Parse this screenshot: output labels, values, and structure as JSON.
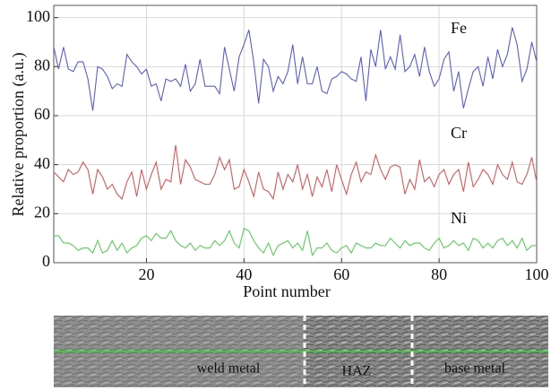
{
  "chart_data": {
    "type": "line",
    "ylabel": "Relative proportion (a.u.)",
    "xlabel": "Point number",
    "x": [
      1,
      2,
      3,
      4,
      5,
      6,
      7,
      8,
      9,
      10,
      11,
      12,
      13,
      14,
      15,
      16,
      17,
      18,
      19,
      20,
      21,
      22,
      23,
      24,
      25,
      26,
      27,
      28,
      29,
      30,
      31,
      32,
      33,
      34,
      35,
      36,
      37,
      38,
      39,
      40,
      41,
      42,
      43,
      44,
      45,
      46,
      47,
      48,
      49,
      50,
      51,
      52,
      53,
      54,
      55,
      56,
      57,
      58,
      59,
      60,
      61,
      62,
      63,
      64,
      65,
      66,
      67,
      68,
      69,
      70,
      71,
      72,
      73,
      74,
      75,
      76,
      77,
      78,
      79,
      80,
      81,
      82,
      83,
      84,
      85,
      86,
      87,
      88,
      89,
      90,
      91,
      92,
      93,
      94,
      95,
      96,
      97,
      98,
      99,
      100
    ],
    "series": [
      {
        "name": "Fe",
        "color": "#5a5ec8",
        "values": [
          88,
          79,
          88,
          79,
          78,
          82,
          82,
          75,
          62,
          80,
          79,
          76,
          71,
          73,
          72,
          85,
          82,
          80,
          77,
          79,
          72,
          73,
          66,
          75,
          74,
          75,
          72,
          81,
          70,
          73,
          83,
          72,
          72,
          72,
          69,
          88,
          79,
          70,
          84,
          89,
          95,
          82,
          65,
          83,
          80,
          70,
          76,
          73,
          78,
          89,
          73,
          84,
          73,
          73,
          80,
          70,
          69,
          75,
          76,
          78,
          77,
          75,
          74,
          84,
          66,
          87,
          80,
          95,
          79,
          84,
          79,
          93,
          78,
          80,
          85,
          76,
          88,
          78,
          72,
          75,
          83,
          86,
          70,
          78,
          63,
          71,
          78,
          80,
          72,
          84,
          75,
          87,
          80,
          85,
          96,
          89,
          74,
          79,
          90,
          82
        ]
      },
      {
        "name": "Cr",
        "color": "#d25a5a",
        "values": [
          37,
          35,
          33,
          38,
          36,
          37,
          41,
          38,
          28,
          38,
          35,
          30,
          32,
          28,
          26,
          33,
          37,
          27,
          38,
          30,
          36,
          41,
          30,
          34,
          33,
          48,
          32,
          42,
          39,
          34,
          33,
          32,
          32,
          36,
          43,
          38,
          42,
          30,
          31,
          38,
          33,
          27,
          37,
          30,
          29,
          26,
          37,
          30,
          36,
          33,
          40,
          30,
          36,
          27,
          35,
          31,
          38,
          29,
          40,
          34,
          28,
          36,
          41,
          33,
          37,
          36,
          44,
          38,
          34,
          39,
          40,
          39,
          28,
          34,
          30,
          42,
          33,
          35,
          31,
          36,
          38,
          32,
          36,
          38,
          29,
          41,
          31,
          34,
          38,
          36,
          32,
          40,
          36,
          34,
          41,
          33,
          32,
          36,
          43,
          33
        ]
      },
      {
        "name": "Ni",
        "color": "#5ccc5c",
        "values": [
          11,
          11,
          8,
          8,
          7,
          5,
          6,
          6,
          4,
          9,
          4,
          5,
          9,
          5,
          8,
          4,
          6,
          7,
          10,
          11,
          9,
          12,
          10,
          10,
          13,
          9,
          7,
          6,
          8,
          5,
          7,
          6,
          6,
          9,
          7,
          9,
          13,
          8,
          6,
          14,
          13,
          9,
          6,
          4,
          8,
          3,
          7,
          8,
          9,
          6,
          8,
          5,
          13,
          3,
          6,
          6,
          8,
          5,
          4,
          6,
          7,
          4,
          8,
          7,
          6,
          6,
          8,
          7,
          7,
          10,
          8,
          6,
          9,
          7,
          8,
          8,
          6,
          5,
          8,
          10,
          6,
          7,
          9,
          7,
          8,
          5,
          10,
          9,
          6,
          8,
          6,
          9,
          10,
          7,
          9,
          6,
          10,
          5,
          7,
          7
        ]
      }
    ],
    "xlim": [
      1,
      100
    ],
    "ylim": [
      0,
      105
    ],
    "xticks": [
      20,
      40,
      60,
      80,
      100
    ],
    "yticks": [
      0,
      20,
      40,
      60,
      80,
      100
    ],
    "grid": true
  },
  "micrograph": {
    "regions": [
      "weld metal",
      "HAZ",
      "base metal"
    ]
  }
}
